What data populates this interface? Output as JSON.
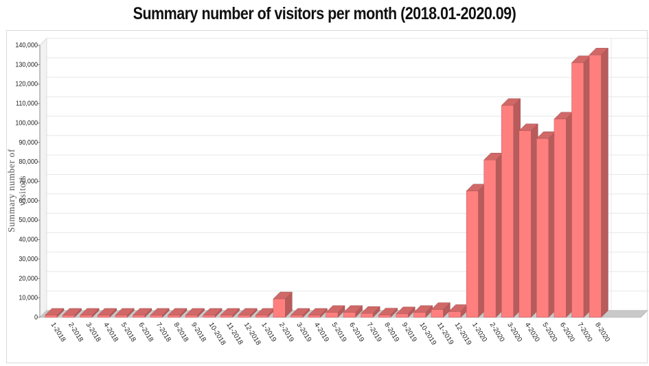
{
  "chart_data": {
    "type": "bar",
    "title": "Summary number of visitors per month (2018.01-2020.09)",
    "xlabel": "",
    "ylabel": "Summary number of visitors",
    "ylim": [
      0,
      140000
    ],
    "yticks": [
      0,
      10000,
      20000,
      30000,
      40000,
      50000,
      60000,
      70000,
      80000,
      90000,
      100000,
      110000,
      120000,
      130000,
      140000
    ],
    "ytick_labels": [
      "0",
      "10,000",
      "20,000",
      "30,000",
      "40,000",
      "50,000",
      "60,000",
      "70,000",
      "80,000",
      "90,000",
      "100,000",
      "110,000",
      "120,000",
      "130,000",
      "140,000"
    ],
    "grid": true,
    "style": "3d",
    "bar_color": "#ff7f7f",
    "categories": [
      "1-2018",
      "2-2018",
      "3-2018",
      "4-2018",
      "5-2018",
      "6-2018",
      "7-2018",
      "8-2018",
      "9-2018",
      "10-2018",
      "11-2018",
      "12-2018",
      "1-2019",
      "2-2019",
      "3-2019",
      "4-2019",
      "5-2019",
      "6-2019",
      "7-2019",
      "8-2019",
      "9-2019",
      "10-2019",
      "11-2019",
      "12-2019",
      "1-2020",
      "2-2020",
      "3-2020",
      "4-2020",
      "5-2020",
      "6-2020",
      "7-2020",
      "8-2020"
    ],
    "values": [
      0,
      0,
      0,
      0,
      0,
      0,
      0,
      0,
      0,
      0,
      0,
      0,
      0,
      9500,
      0,
      0,
      2500,
      2500,
      2000,
      1200,
      1800,
      2500,
      4000,
      3000,
      65000,
      81000,
      109000,
      96000,
      92000,
      102000,
      131000,
      135000
    ]
  }
}
